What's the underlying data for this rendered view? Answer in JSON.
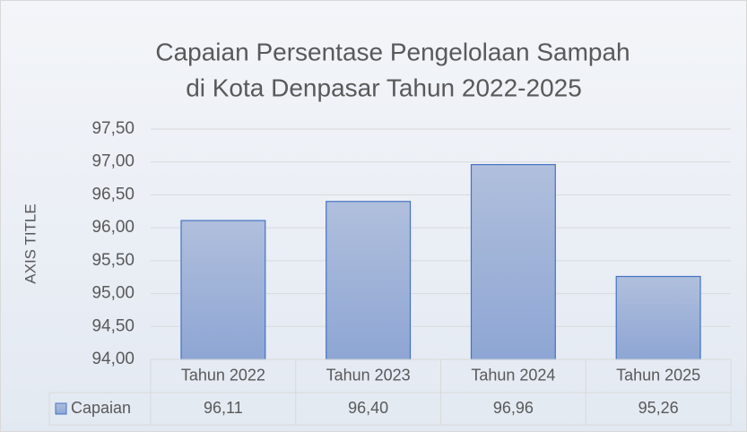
{
  "chart_data": {
    "type": "bar",
    "title": [
      "Capaian Persentase Pengelolaan Sampah",
      "di Kota Denpasar Tahun 2022-2025"
    ],
    "y_axis_label": "AXIS TITLE",
    "categories": [
      "Tahun 2022",
      "Tahun 2023",
      "Tahun 2024",
      "Tahun 2025"
    ],
    "series": [
      {
        "name": "Capaian",
        "color": "#4472c4",
        "values": [
          96.11,
          96.4,
          96.96,
          95.26
        ],
        "value_labels": [
          "96,11",
          "96,40",
          "96,96",
          "95,26"
        ]
      }
    ],
    "ylim": [
      94,
      97.5
    ],
    "yticks": [
      {
        "value": 94,
        "label": "94,00"
      },
      {
        "value": 94.5,
        "label": "94,50"
      },
      {
        "value": 95,
        "label": "95,00"
      },
      {
        "value": 95.5,
        "label": "95,50"
      },
      {
        "value": 96,
        "label": "96,00"
      },
      {
        "value": 96.5,
        "label": "96,50"
      },
      {
        "value": 97,
        "label": "97,00"
      },
      {
        "value": 97.5,
        "label": "97,50"
      }
    ],
    "grid": true,
    "data_table": true
  }
}
